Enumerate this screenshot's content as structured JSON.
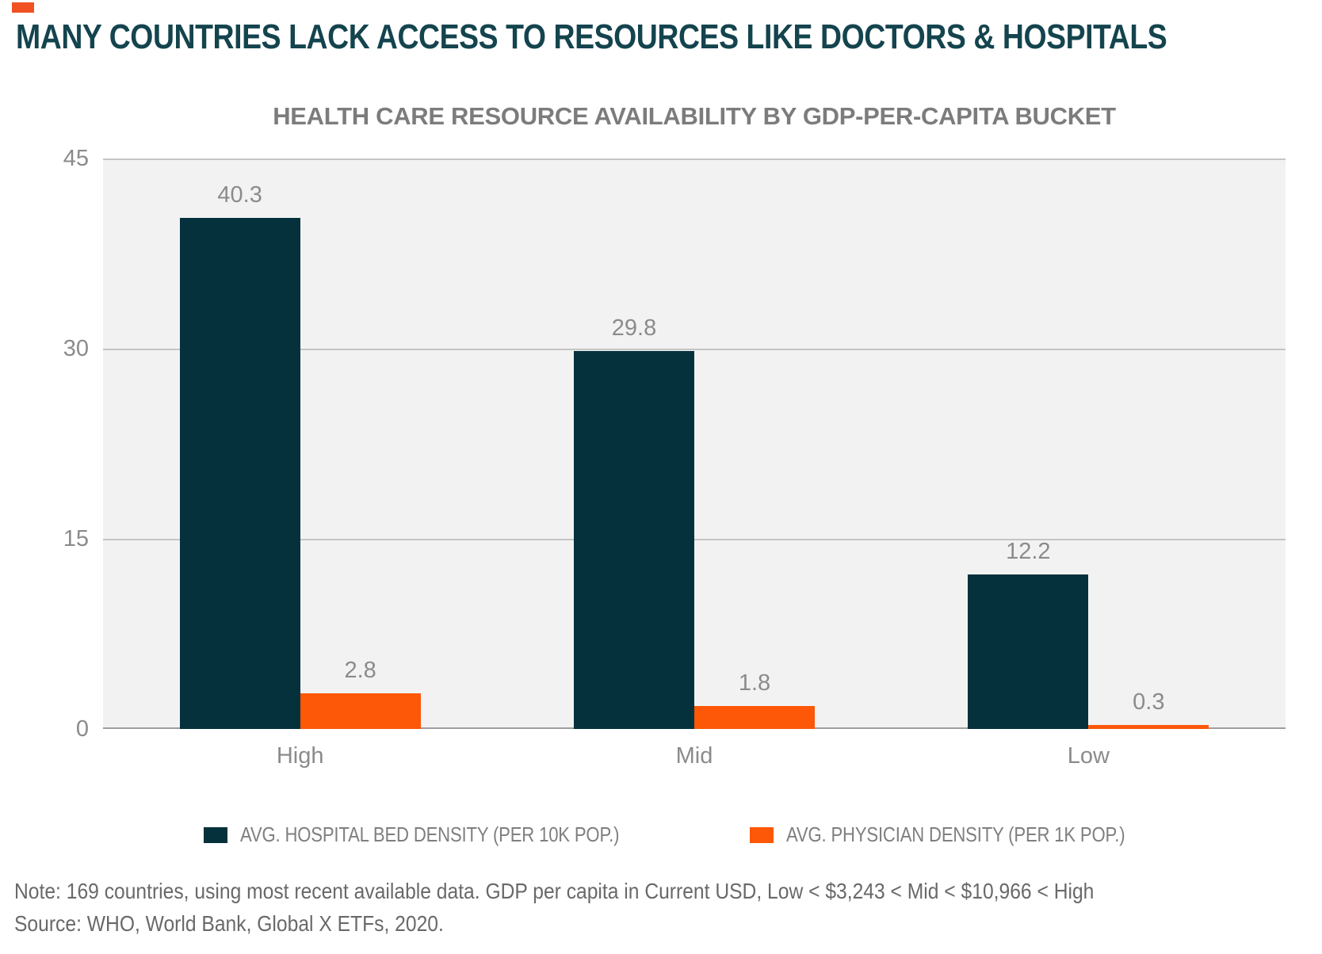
{
  "headline": "MANY COUNTRIES LACK ACCESS TO RESOURCES LIKE DOCTORS & HOSPITALS",
  "brand": {
    "flag_color": "#f05223",
    "headline_color": "#14444e"
  },
  "chart_data": {
    "type": "bar",
    "title": "HEALTH CARE RESOURCE AVAILABILITY BY GDP-PER-CAPITA BUCKET",
    "categories": [
      "High",
      "Mid",
      "Low"
    ],
    "series": [
      {
        "name": "AVG. HOSPITAL BED DENSITY (PER 10K POP.)",
        "color": "#04313c",
        "values": [
          40.3,
          29.8,
          12.2
        ]
      },
      {
        "name": "AVG. PHYSICIAN DENSITY (PER 1K POP.)",
        "color": "#fc5808",
        "values": [
          2.8,
          1.8,
          0.3
        ]
      }
    ],
    "value_labels": [
      [
        "40.3",
        "29.8",
        "12.2"
      ],
      [
        "2.8",
        "1.8",
        "0.3"
      ]
    ],
    "y_ticks": [
      0,
      15,
      30,
      45
    ],
    "ylim": [
      0,
      45
    ],
    "grid": true,
    "legend_position": "bottom",
    "plot_background": "#f2f2f3",
    "gridline_color": "#c4c4c4",
    "baseline_color": "#9e9e9e",
    "label_color": "#8b8b8b"
  },
  "note": {
    "line1": "Note: 169 countries, using most recent available data. GDP per capita in Current USD, Low < $3,243 < Mid < $10,966 < High",
    "line2": "Source: WHO, World Bank, Global X ETFs, 2020."
  }
}
